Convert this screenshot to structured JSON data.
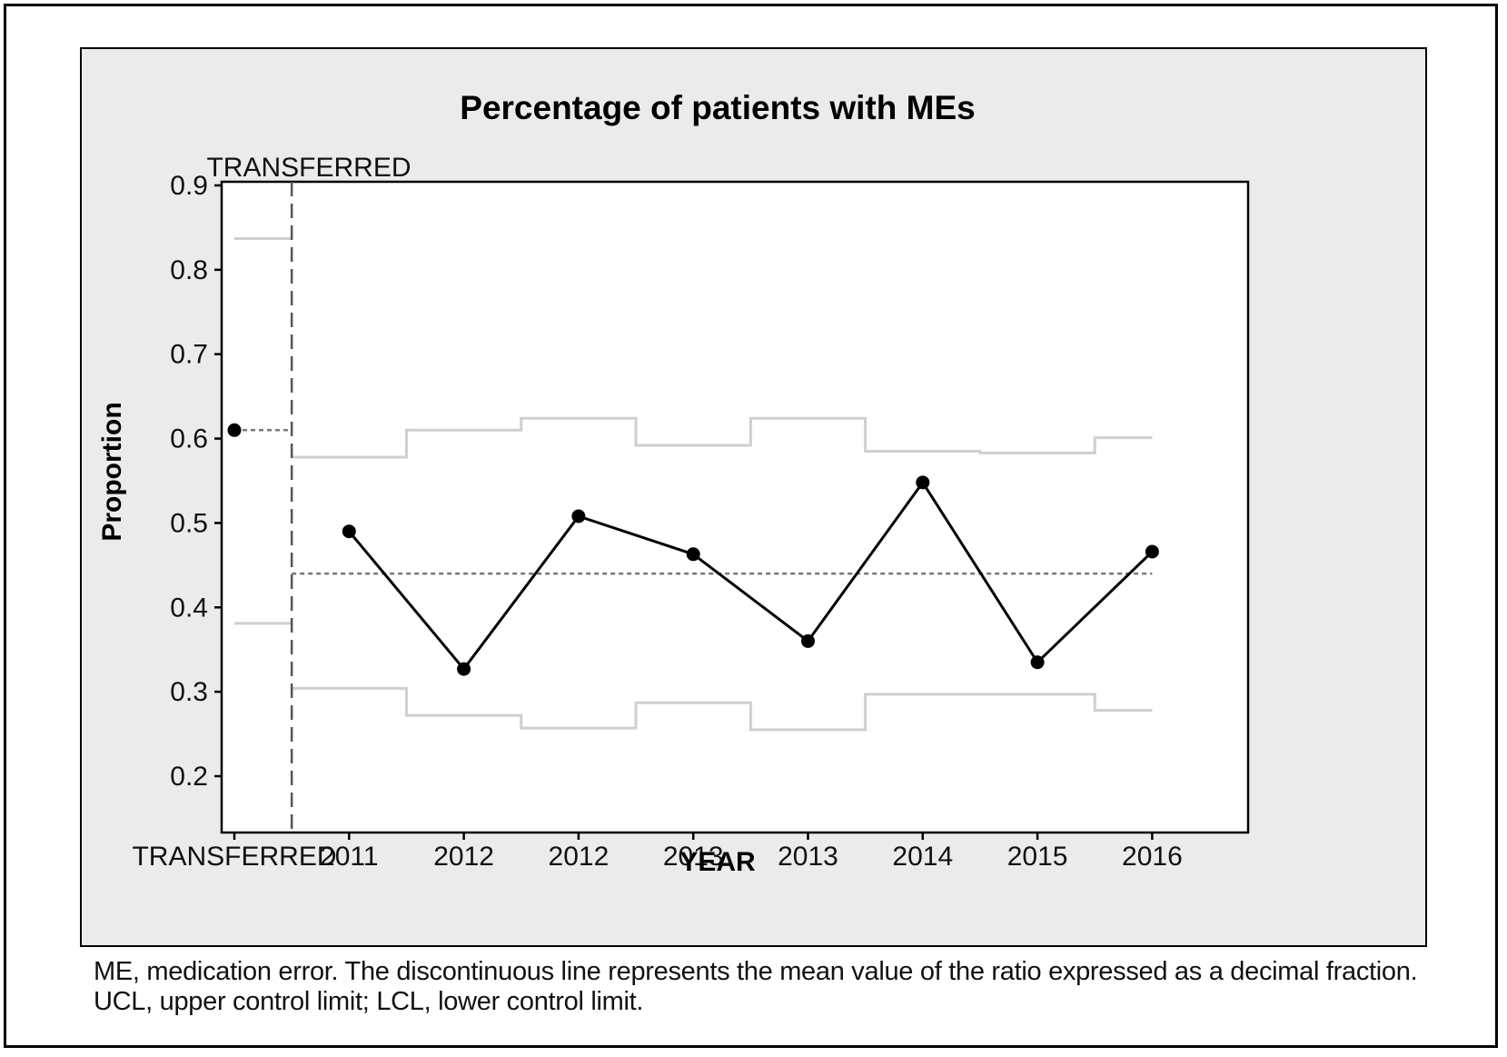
{
  "chart_data": {
    "type": "line",
    "title": "Percentage of patients with MEs",
    "xlabel": "YEAR",
    "ylabel": "Proportion",
    "ylim": [
      0.2,
      0.9
    ],
    "yticks": [
      "0.2",
      "0.3",
      "0.4",
      "0.5",
      "0.6",
      "0.7",
      "0.8",
      "0.9"
    ],
    "categories": [
      "TRANSFERRED",
      "2011",
      "2012",
      "2012",
      "2013",
      "2013",
      "2014",
      "2015",
      "2016"
    ],
    "phase_label": "TRANSFERRED",
    "series": [
      {
        "values": [
          0.61,
          0.49,
          0.327,
          0.508,
          0.463,
          0.36,
          0.548,
          0.335,
          0.466
        ]
      }
    ],
    "center_line": {
      "transferred": 0.61,
      "main": 0.44
    },
    "control_limits": {
      "ucl": [
        0.837,
        0.578,
        0.61,
        0.624,
        0.592,
        0.624,
        0.585,
        0.583,
        0.601
      ],
      "lcl": [
        0.381,
        0.304,
        0.272,
        0.257,
        0.287,
        0.255,
        0.297,
        0.297,
        0.278
      ]
    },
    "grid": false,
    "colors": {
      "line": "#000000",
      "center_line": "#777777",
      "limits": "#cfcfcf",
      "phase_line": "#555555",
      "panel_background": "#ebebeb",
      "plot_background": "#ffffff"
    }
  },
  "caption": "ME, medication error. The discontinuous line represents the mean value of the ratio expressed as a decimal fraction. UCL, upper control limit; LCL, lower control limit."
}
